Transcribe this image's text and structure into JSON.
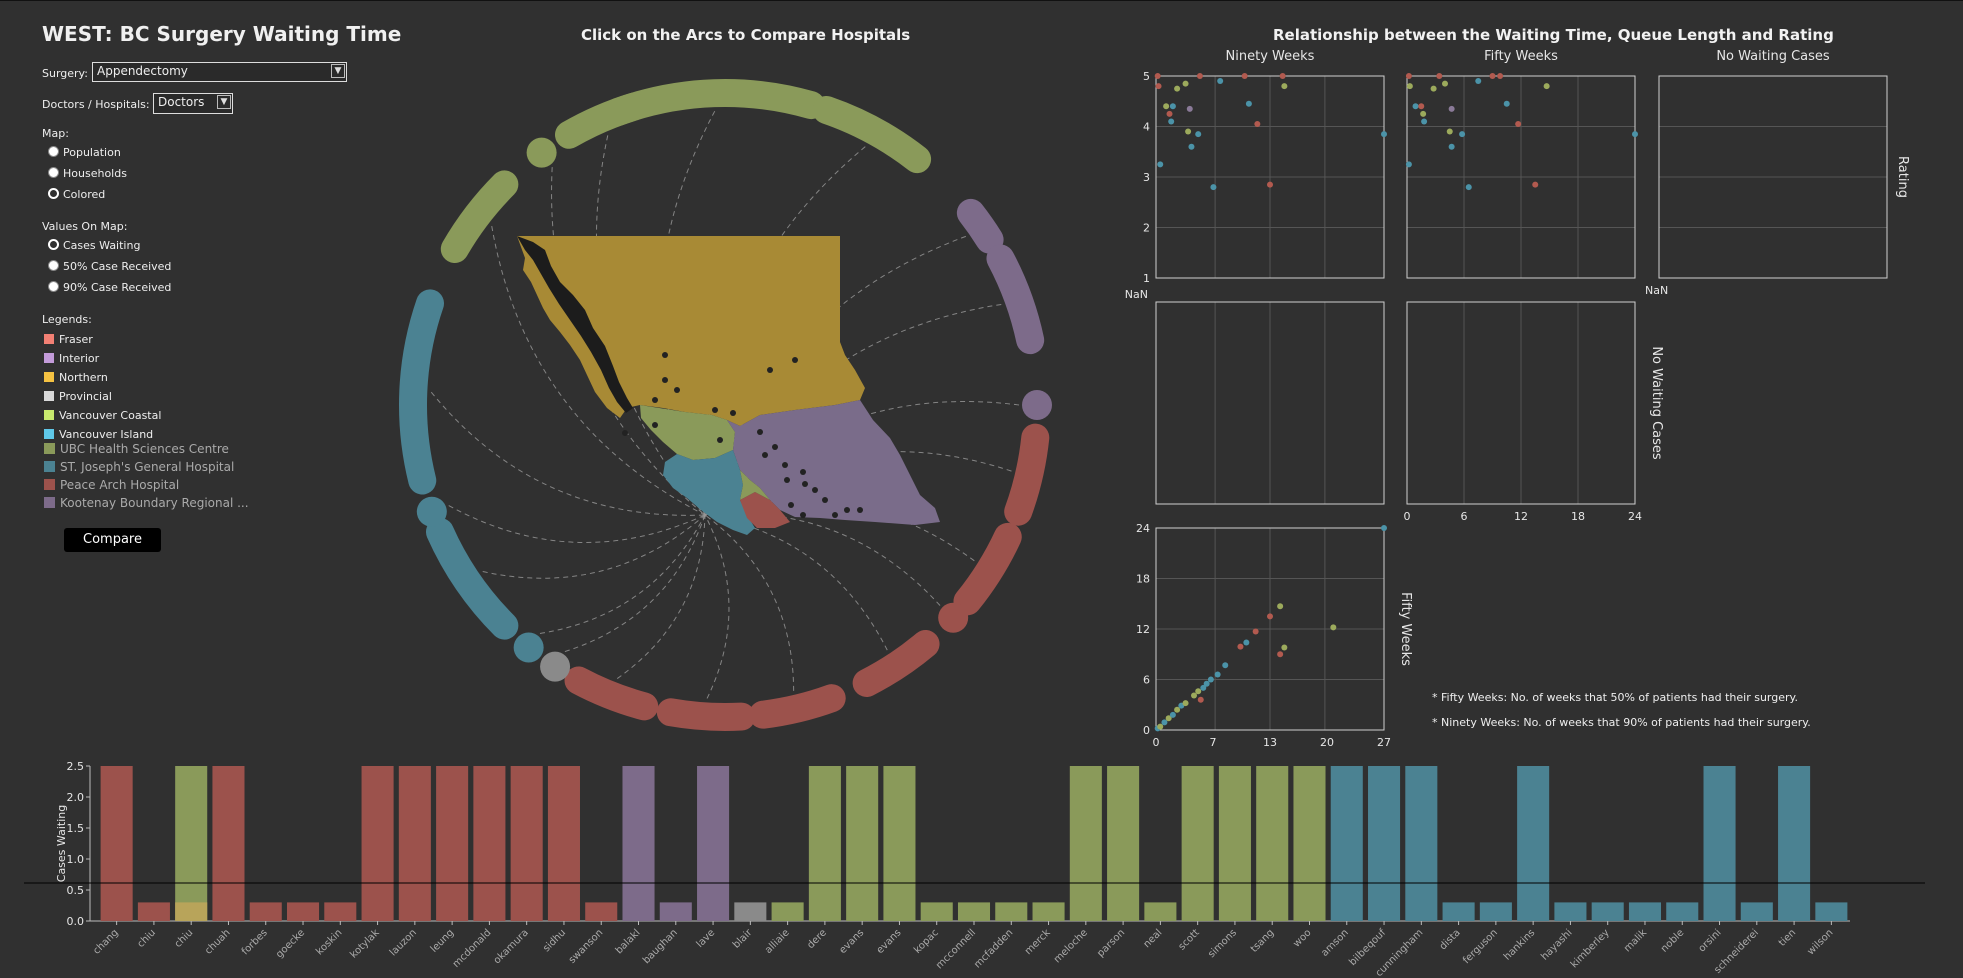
{
  "app": {
    "title": "WEST: BC Surgery Waiting Time",
    "surgery_label": "Surgery:",
    "surgery_value": "Appendectomy",
    "dh_label": "Doctors / Hospitals:",
    "dh_value": "Doctors",
    "map_label": "Map:",
    "map_options": [
      "Population",
      "Households",
      "Colored"
    ],
    "values_label": "Values On Map:",
    "values_options": [
      "Cases Waiting",
      "50% Case Received",
      "90% Case Received"
    ],
    "legends_label": "Legends:",
    "compare_label": "Compare"
  },
  "legend": {
    "regions": [
      {
        "name": "Fraser",
        "color": "#f28074"
      },
      {
        "name": "Interior",
        "color": "#c39bd9"
      },
      {
        "name": "Northern",
        "color": "#f5c242"
      },
      {
        "name": "Provincial",
        "color": "#d9d9d9"
      },
      {
        "name": "Vancouver Coastal",
        "color": "#c8ea6e"
      },
      {
        "name": "Vancouver Island",
        "color": "#5fc8e8"
      }
    ],
    "hospitals": [
      {
        "name": "UBC Health Sciences Centre",
        "color": "#8a9a5a"
      },
      {
        "name": "ST. Joseph's General Hospital",
        "color": "#4b8292"
      },
      {
        "name": "Peace Arch Hospital",
        "color": "#9c524c"
      },
      {
        "name": "Kootenay Boundary Regional ...",
        "color": "#7d6b8a"
      }
    ]
  },
  "map_title": "Click on the Arcs to Compare Hospitals",
  "scatter_title": "Relationship between the Waiting Time, Queue Length and Rating",
  "notes": {
    "fifty": "* Fifty Weeks: No. of weeks that 50% of patients had their surgery.",
    "ninety": "* Ninety Weeks: No. of weeks that 90% of patients had their surgery."
  },
  "colors": {
    "fraser": "#9c524c",
    "interior": "#7d6b8a",
    "coastal": "#8a9a5a",
    "island": "#4b8292",
    "provincial": "#8a8a8a",
    "northern_map": "#a88a35",
    "interior_map": "#7a6c8a",
    "coastal_map": "#8a9a5a",
    "island_map": "#4b8292",
    "fraser_map": "#9c524c"
  },
  "chart_data": [
    {
      "type": "bar",
      "ylabel": "Cases Waiting",
      "ylim": [
        0,
        2.5
      ],
      "yticks": [
        "0.0",
        "0.5",
        "1.0",
        "1.5",
        "2.0",
        "2.5"
      ],
      "categories": [
        "chang",
        "chiu",
        "chiu",
        "chuah",
        "forbes",
        "goecke",
        "koskin",
        "kotylak",
        "lauzon",
        "leung",
        "mcdonald",
        "okamura",
        "sidhu",
        "swanson",
        "balakl",
        "baughan",
        "lave",
        "blair",
        "alliaie",
        "dere",
        "evans",
        "evans",
        "kopac",
        "mcconnell",
        "mcfadden",
        "merck",
        "meloche",
        "parson",
        "neal",
        "scott",
        "simons",
        "tsang",
        "woo",
        "amson",
        "bilbeqouf",
        "cunningham",
        "dista",
        "ferguson",
        "hankins",
        "hayashi",
        "kimberley",
        "malik",
        "noble",
        "orsini",
        "schneiderei",
        "tien",
        "wilson"
      ],
      "values": [
        2.5,
        0.3,
        2.5,
        2.5,
        0.3,
        0.3,
        0.3,
        2.5,
        2.5,
        2.5,
        2.5,
        2.5,
        2.5,
        0.3,
        2.5,
        0.3,
        2.5,
        0.3,
        0.3,
        2.5,
        2.5,
        2.5,
        0.3,
        0.3,
        0.3,
        0.3,
        2.5,
        2.5,
        0.3,
        2.5,
        2.5,
        2.5,
        2.5,
        2.5,
        2.5,
        2.5,
        0.3,
        0.3,
        2.5,
        0.3,
        0.3,
        0.3,
        0.3,
        2.5,
        0.3,
        2.5,
        0.3
      ],
      "groups": [
        "fraser",
        "fraser",
        "coastal",
        "fraser",
        "fraser",
        "fraser",
        "fraser",
        "fraser",
        "fraser",
        "fraser",
        "fraser",
        "fraser",
        "fraser",
        "fraser",
        "interior",
        "interior",
        "interior",
        "provincial",
        "coastal",
        "coastal",
        "coastal",
        "coastal",
        "coastal",
        "coastal",
        "coastal",
        "coastal",
        "coastal",
        "coastal",
        "coastal",
        "coastal",
        "coastal",
        "coastal",
        "coastal",
        "island",
        "island",
        "island",
        "island",
        "island",
        "island",
        "island",
        "island",
        "island",
        "island",
        "island",
        "island",
        "island",
        "island"
      ]
    },
    {
      "type": "scatter",
      "panel": "Ninety Weeks vs Rating",
      "xlabel": "Ninety Weeks",
      "ylabel": "Rating",
      "xlim": [
        0,
        27
      ],
      "ylim": [
        1,
        5
      ],
      "points": [
        {
          "x": 0.3,
          "y": 4.8,
          "g": "fraser"
        },
        {
          "x": 0.5,
          "y": 3.25,
          "g": "island"
        },
        {
          "x": 1.2,
          "y": 4.4,
          "g": "coastal"
        },
        {
          "x": 1.6,
          "y": 4.25,
          "g": "fraser"
        },
        {
          "x": 1.8,
          "y": 4.1,
          "g": "island"
        },
        {
          "x": 2.0,
          "y": 4.4,
          "g": "island"
        },
        {
          "x": 2.5,
          "y": 4.75,
          "g": "coastal"
        },
        {
          "x": 3.5,
          "y": 4.85,
          "g": "coastal"
        },
        {
          "x": 3.8,
          "y": 3.9,
          "g": "coastal"
        },
        {
          "x": 4.0,
          "y": 4.35,
          "g": "interior"
        },
        {
          "x": 4.2,
          "y": 3.6,
          "g": "island"
        },
        {
          "x": 5.0,
          "y": 3.85,
          "g": "island"
        },
        {
          "x": 5.2,
          "y": 5.0,
          "g": "fraser"
        },
        {
          "x": 6.8,
          "y": 2.8,
          "g": "island"
        },
        {
          "x": 7.6,
          "y": 4.9,
          "g": "island"
        },
        {
          "x": 10.5,
          "y": 5.0,
          "g": "fraser"
        },
        {
          "x": 11.0,
          "y": 4.45,
          "g": "island"
        },
        {
          "x": 12.0,
          "y": 4.05,
          "g": "fraser"
        },
        {
          "x": 13.5,
          "y": 2.85,
          "g": "fraser"
        },
        {
          "x": 15.2,
          "y": 4.8,
          "g": "coastal"
        },
        {
          "x": 15.0,
          "y": 5.0,
          "g": "fraser"
        },
        {
          "x": 27.0,
          "y": 3.85,
          "g": "island"
        },
        {
          "x": 0.2,
          "y": 5.0,
          "g": "fraser"
        }
      ]
    },
    {
      "type": "scatter",
      "panel": "Fifty Weeks vs Rating",
      "xlabel": "Fifty Weeks",
      "ylabel": "Rating",
      "xlim": [
        0,
        24
      ],
      "ylim": [
        1,
        5
      ],
      "points": [
        {
          "x": 0.2,
          "y": 5.0,
          "g": "fraser"
        },
        {
          "x": 0.3,
          "y": 4.8,
          "g": "coastal"
        },
        {
          "x": 0.2,
          "y": 3.25,
          "g": "island"
        },
        {
          "x": 0.9,
          "y": 4.4,
          "g": "island"
        },
        {
          "x": 1.5,
          "y": 4.4,
          "g": "fraser"
        },
        {
          "x": 1.7,
          "y": 4.25,
          "g": "coastal"
        },
        {
          "x": 1.8,
          "y": 4.1,
          "g": "island"
        },
        {
          "x": 2.8,
          "y": 4.75,
          "g": "coastal"
        },
        {
          "x": 3.4,
          "y": 5.0,
          "g": "fraser"
        },
        {
          "x": 4.0,
          "y": 4.85,
          "g": "coastal"
        },
        {
          "x": 4.5,
          "y": 3.9,
          "g": "coastal"
        },
        {
          "x": 4.7,
          "y": 4.35,
          "g": "interior"
        },
        {
          "x": 4.7,
          "y": 3.6,
          "g": "island"
        },
        {
          "x": 5.8,
          "y": 3.85,
          "g": "island"
        },
        {
          "x": 6.5,
          "y": 2.8,
          "g": "island"
        },
        {
          "x": 7.5,
          "y": 4.9,
          "g": "island"
        },
        {
          "x": 9.0,
          "y": 5.0,
          "g": "fraser"
        },
        {
          "x": 9.8,
          "y": 5.0,
          "g": "fraser"
        },
        {
          "x": 10.5,
          "y": 4.45,
          "g": "island"
        },
        {
          "x": 11.7,
          "y": 4.05,
          "g": "fraser"
        },
        {
          "x": 13.5,
          "y": 2.85,
          "g": "fraser"
        },
        {
          "x": 14.7,
          "y": 4.8,
          "g": "coastal"
        },
        {
          "x": 24.0,
          "y": 3.85,
          "g": "island"
        }
      ]
    },
    {
      "type": "scatter",
      "panel": "Ninety Weeks vs Fifty Weeks",
      "xlabel": "Ninety Weeks",
      "ylabel": "Fifty Weeks",
      "xlim": [
        0,
        27
      ],
      "ylim": [
        0,
        24
      ],
      "xticks": [
        "0",
        "7",
        "13",
        "20",
        "27"
      ],
      "yticks": [
        "0",
        "6",
        "12",
        "18",
        "24"
      ],
      "points": [
        {
          "x": 0.2,
          "y": 0.2,
          "g": "island"
        },
        {
          "x": 0.5,
          "y": 0.4,
          "g": "coastal"
        },
        {
          "x": 1.0,
          "y": 0.9,
          "g": "island"
        },
        {
          "x": 1.5,
          "y": 1.4,
          "g": "coastal"
        },
        {
          "x": 2.0,
          "y": 1.8,
          "g": "island"
        },
        {
          "x": 2.5,
          "y": 2.4,
          "g": "coastal"
        },
        {
          "x": 3.0,
          "y": 2.9,
          "g": "island"
        },
        {
          "x": 3.5,
          "y": 3.2,
          "g": "coastal"
        },
        {
          "x": 4.5,
          "y": 4.1,
          "g": "coastal"
        },
        {
          "x": 5.0,
          "y": 4.6,
          "g": "coastal"
        },
        {
          "x": 5.3,
          "y": 3.6,
          "g": "fraser"
        },
        {
          "x": 5.6,
          "y": 5.0,
          "g": "island"
        },
        {
          "x": 6.0,
          "y": 5.5,
          "g": "island"
        },
        {
          "x": 6.5,
          "y": 6.0,
          "g": "island"
        },
        {
          "x": 7.3,
          "y": 6.6,
          "g": "island"
        },
        {
          "x": 8.2,
          "y": 7.7,
          "g": "island"
        },
        {
          "x": 10.0,
          "y": 9.9,
          "g": "fraser"
        },
        {
          "x": 10.7,
          "y": 10.4,
          "g": "island"
        },
        {
          "x": 11.8,
          "y": 11.7,
          "g": "fraser"
        },
        {
          "x": 13.5,
          "y": 13.5,
          "g": "fraser"
        },
        {
          "x": 14.7,
          "y": 14.7,
          "g": "coastal"
        },
        {
          "x": 14.7,
          "y": 9.0,
          "g": "fraser"
        },
        {
          "x": 15.2,
          "y": 9.8,
          "g": "coastal"
        },
        {
          "x": 21.0,
          "y": 12.2,
          "g": "coastal"
        },
        {
          "x": 27.0,
          "y": 24.0,
          "g": "island"
        }
      ]
    }
  ],
  "scatter_labels": {
    "col1": "Ninety Weeks",
    "col2": "Fifty Weeks",
    "col3": "No Waiting Cases",
    "row_rating": "Rating",
    "row_nowait": "No Waiting Cases",
    "row_fifty": "Fifty Weeks",
    "nan": "NaN",
    "rating_ticks": [
      "1",
      "2",
      "3",
      "4",
      "5"
    ],
    "fifty_ticks": [
      "0",
      "6",
      "12",
      "18",
      "24"
    ]
  }
}
